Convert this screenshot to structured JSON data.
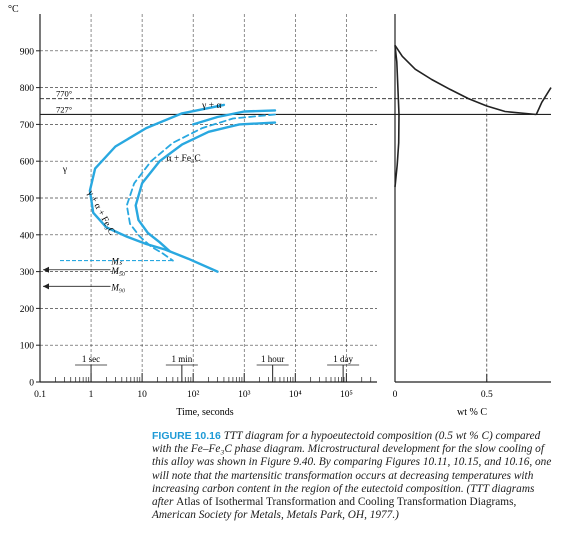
{
  "chart_data": {
    "type": "line",
    "ttt_panel": {
      "y_unit": "°C",
      "ylim": [
        0,
        1000
      ],
      "y_ticks": [
        0,
        100,
        200,
        300,
        400,
        500,
        600,
        700,
        800,
        900
      ],
      "x_log_ticks": [
        "0.1",
        "1",
        "10",
        "10²",
        "10³",
        "10⁴",
        "10⁵"
      ],
      "xlabel": "Time, seconds",
      "time_marks": [
        {
          "label": "1 sec",
          "x": 1
        },
        {
          "label": "1 min",
          "x": 60
        },
        {
          "label": "1 hour",
          "x": 3600
        },
        {
          "label": "1 day",
          "x": 86400
        }
      ],
      "reference_temps": [
        {
          "label": "770°",
          "y": 770
        },
        {
          "label": "727°",
          "y": 727
        }
      ],
      "martensite_lines": [
        {
          "label": "Mₛ",
          "y": 330
        },
        {
          "label": "M₅₀",
          "y": 305
        },
        {
          "label": "M₉₀",
          "y": 260
        }
      ],
      "region_labels": [
        "γ",
        "γ + α",
        "α + Fe₃C",
        "γ + α + Fe₃C"
      ],
      "series": [
        {
          "x": [
            400,
            60,
            12,
            3,
            1.2,
            0.95,
            1.1,
            2,
            5,
            12,
            28,
            80,
            300
          ],
          "y": [
            753,
            730,
            690,
            640,
            580,
            520,
            460,
            420,
            395,
            375,
            360,
            335,
            300
          ]
        },
        {
          "x": [
            4000,
            600,
            150,
            40,
            15,
            7,
            5,
            5.8,
            9,
            15,
            25,
            40
          ],
          "y": [
            727,
            716,
            690,
            650,
            600,
            540,
            480,
            430,
            395,
            368,
            350,
            330
          ]
        },
        {
          "x": [
            4000,
            800,
            200,
            60,
            22,
            10,
            7.5,
            8.5,
            13,
            22,
            35
          ],
          "y": [
            705,
            700,
            680,
            645,
            600,
            540,
            480,
            440,
            405,
            380,
            355
          ]
        },
        {
          "x": [
            4000,
            1000,
            300,
            100
          ],
          "y": [
            738,
            735,
            720,
            700
          ]
        }
      ]
    },
    "phase_panel": {
      "xlabel": "wt % C",
      "x_ticks": [
        "0",
        "0.5"
      ],
      "xlim": [
        0,
        0.85
      ],
      "ylim": [
        0,
        1000
      ],
      "series": [
        {
          "x": [
            0,
            0.04,
            0.11,
            0.2,
            0.3,
            0.4,
            0.5,
            0.6,
            0.77
          ],
          "y": [
            915,
            885,
            850,
            822,
            795,
            770,
            750,
            735,
            727
          ]
        },
        {
          "x": [
            0.77,
            0.8,
            0.85
          ],
          "y": [
            727,
            760,
            800
          ]
        },
        {
          "x": [
            0,
            0.01,
            0.022,
            0.02,
            0.012,
            0
          ],
          "y": [
            915,
            870,
            727,
            650,
            590,
            530
          ]
        }
      ]
    }
  },
  "caption": {
    "label": "FIGURE 10.16",
    "title": "TTT diagram for a hypoeutectoid composition (0.5 wt % C) compared with the Fe–Fe₃C phase diagram.",
    "body1": "Microstructural development for the slow cooling of this alloy was shown in Figure 9.40. By comparing Figures 10.11, 10.15, and 10.16, one will note that the martensitic transformation occurs at decreasing temperatures with increasing carbon content in the region of the eutectoid composition. (TTT diagrams after",
    "source_a": "Atlas of Isothermal Transformation and Cooling Transformation Diagrams,",
    "source_b": "American Society for Metals, Metals Park, OH, 1977.)"
  },
  "colors": {
    "curve": "#29a8e0",
    "axis": "#222222",
    "grid": "#444444"
  }
}
